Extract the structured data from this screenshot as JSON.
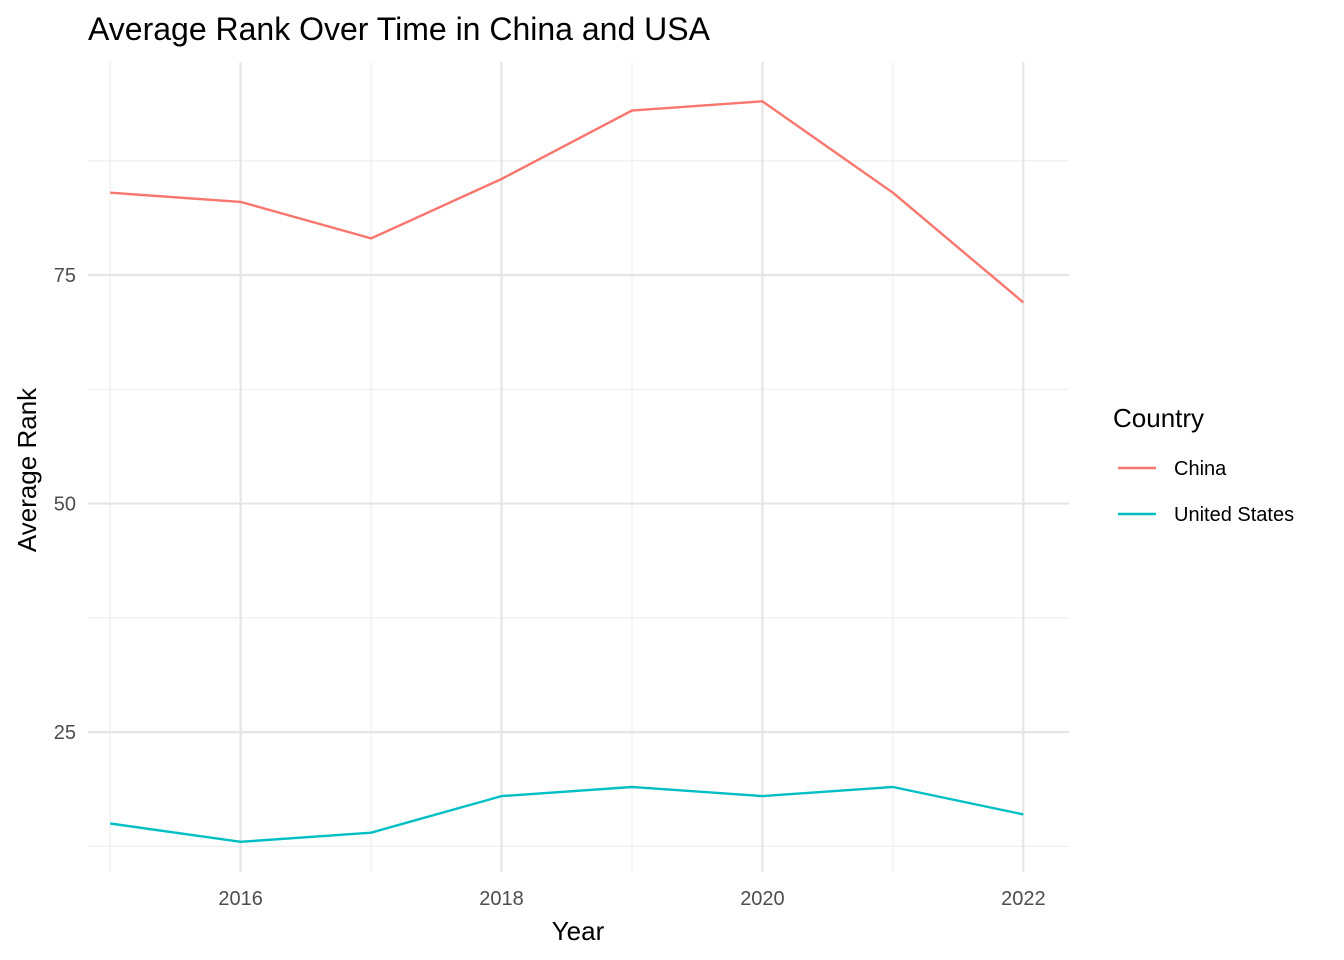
{
  "chart_data": {
    "type": "line",
    "title": "Average Rank Over Time in China and USA",
    "xlabel": "Year",
    "ylabel": "Average Rank",
    "x": [
      2015,
      2016,
      2017,
      2018,
      2019,
      2020,
      2021,
      2022
    ],
    "x_ticks": [
      2016,
      2018,
      2020,
      2022
    ],
    "y_ticks": [
      25,
      50,
      75
    ],
    "xlim": [
      2014.83,
      2022.35
    ],
    "ylim": [
      9.7,
      98.3
    ],
    "grid": true,
    "legend": {
      "title": "Country",
      "position": "right"
    },
    "series": [
      {
        "name": "China",
        "color": "#F8766D",
        "values": [
          84,
          83,
          79,
          85.5,
          93,
          94,
          84,
          72
        ]
      },
      {
        "name": "United States",
        "color": "#00BFC4",
        "values": [
          15,
          13,
          14,
          18,
          19,
          18,
          19,
          16
        ]
      }
    ]
  }
}
